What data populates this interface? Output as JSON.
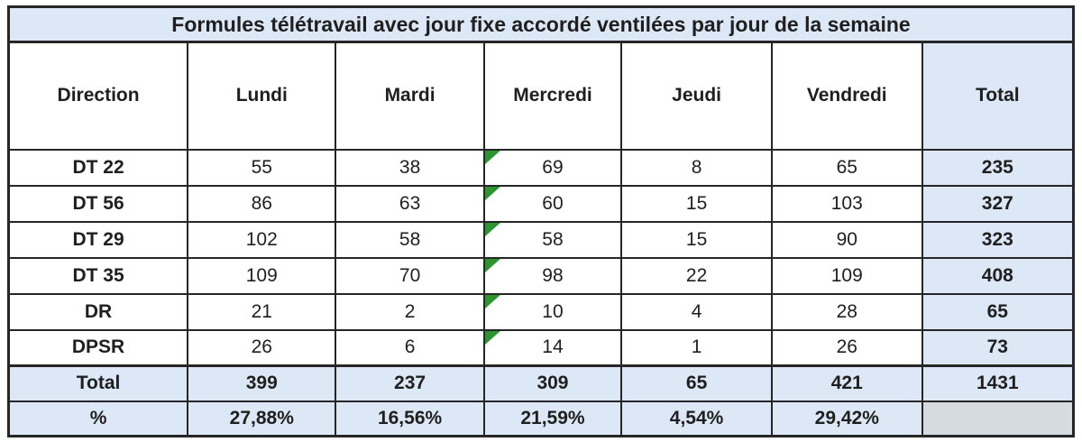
{
  "chart_data": {
    "type": "table",
    "title": "Formules télétravail avec jour fixe accordé ventilées par jour de la semaine",
    "columns": [
      "Direction",
      "Lundi",
      "Mardi",
      "Mercredi",
      "Jeudi",
      "Vendredi",
      "Total"
    ],
    "rows": [
      {
        "label": "DT 22",
        "values": [
          "55",
          "38",
          "69",
          "8",
          "65"
        ],
        "total": "235"
      },
      {
        "label": "DT 56",
        "values": [
          "86",
          "63",
          "60",
          "15",
          "103"
        ],
        "total": "327"
      },
      {
        "label": "DT 29",
        "values": [
          "102",
          "58",
          "58",
          "15",
          "90"
        ],
        "total": "323"
      },
      {
        "label": "DT 35",
        "values": [
          "109",
          "70",
          "98",
          "22",
          "109"
        ],
        "total": "408"
      },
      {
        "label": "DR",
        "values": [
          "21",
          "2",
          "10",
          "4",
          "28"
        ],
        "total": "65"
      },
      {
        "label": "DPSR",
        "values": [
          "26",
          "6",
          "14",
          "1",
          "26"
        ],
        "total": "73"
      }
    ],
    "total_row": {
      "label": "Total",
      "values": [
        "399",
        "237",
        "309",
        "65",
        "421"
      ],
      "total": "1431"
    },
    "percent_row": {
      "label": "%",
      "values": [
        "27,88%",
        "16,56%",
        "21,59%",
        "4,54%",
        "29,42%"
      ],
      "total": ""
    },
    "annotations": "green corner marker on every Mercredi data cell",
    "layout": {
      "grid": "on",
      "header_position": "top"
    }
  },
  "colors": {
    "fill_light_blue": "#dce8f5",
    "fill_gray_blue": "#d5dbe1",
    "marker_green": "#2f9331",
    "border": "#262626",
    "text": "#1f1f1f",
    "background": "#ffffff"
  },
  "icons": {
    "comment_marker": "green-corner-triangle"
  }
}
